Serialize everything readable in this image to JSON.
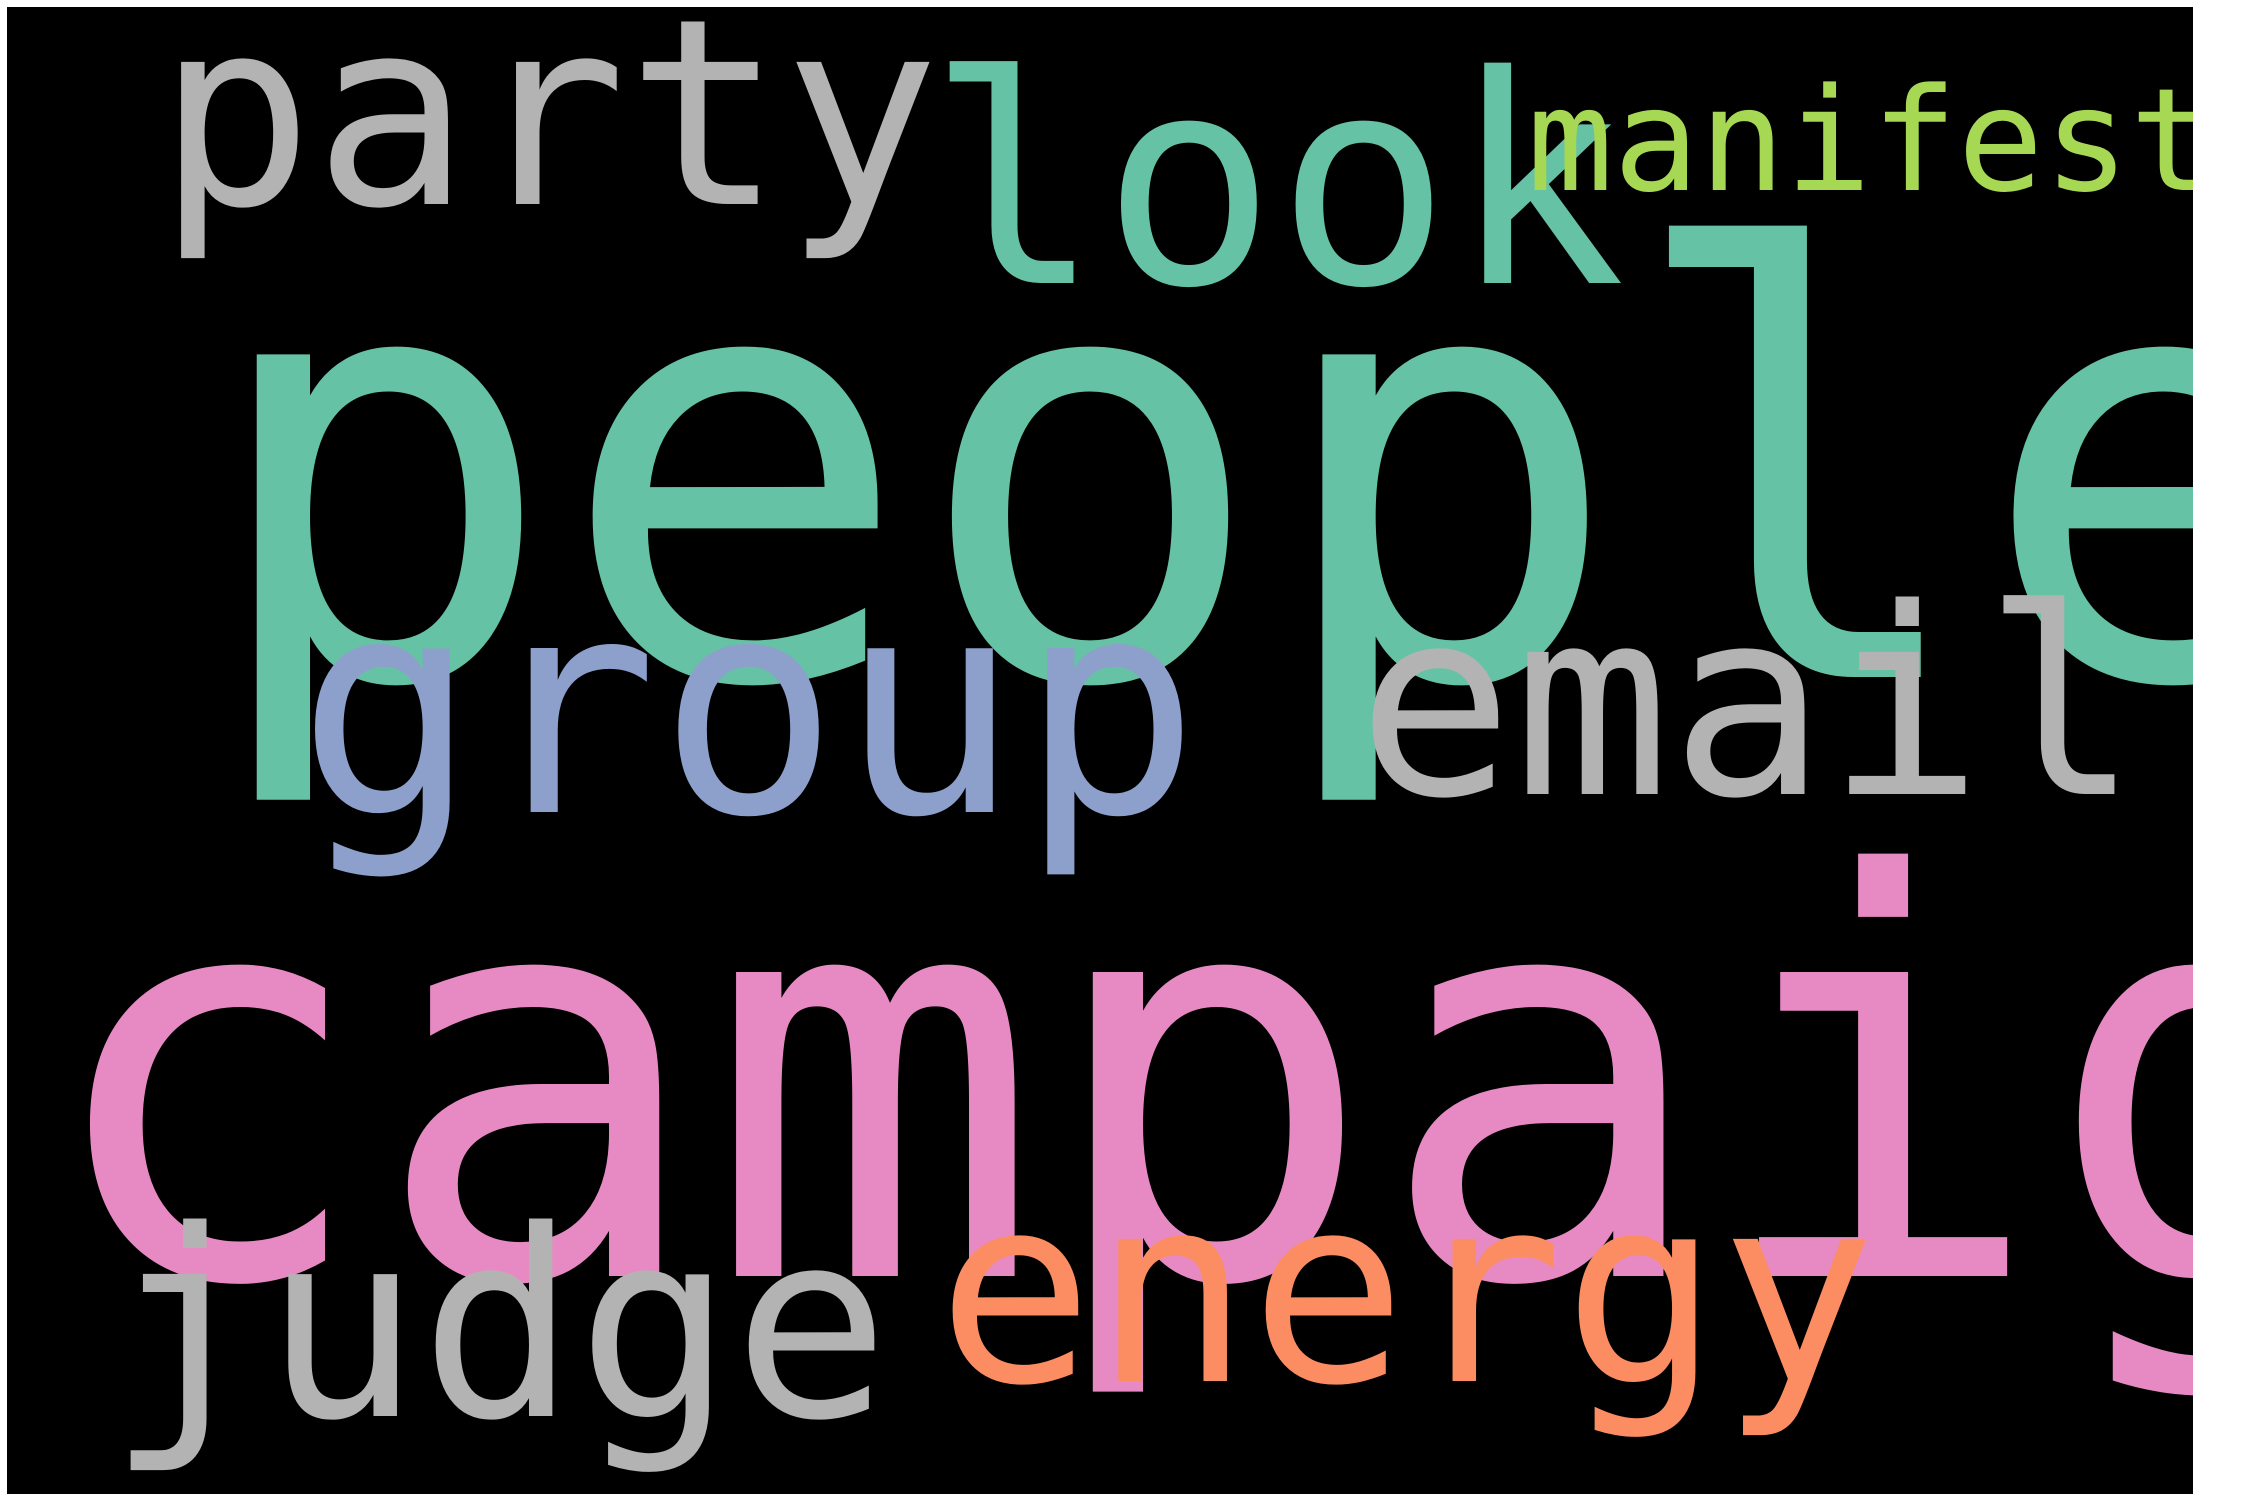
{
  "wordcloud": {
    "background": "#000000",
    "words": [
      {
        "text": "people",
        "color": "#66c2a5"
      },
      {
        "text": "campaign",
        "color": "#e78ac3"
      },
      {
        "text": "party",
        "color": "#b3b3b3"
      },
      {
        "text": "look",
        "color": "#66c2a5"
      },
      {
        "text": "manifesto",
        "color": "#a6d854"
      },
      {
        "text": "group",
        "color": "#8da0cb"
      },
      {
        "text": "email",
        "color": "#b3b3b3"
      },
      {
        "text": "judge",
        "color": "#b3b3b3"
      },
      {
        "text": "energy",
        "color": "#fc8d62"
      }
    ]
  }
}
